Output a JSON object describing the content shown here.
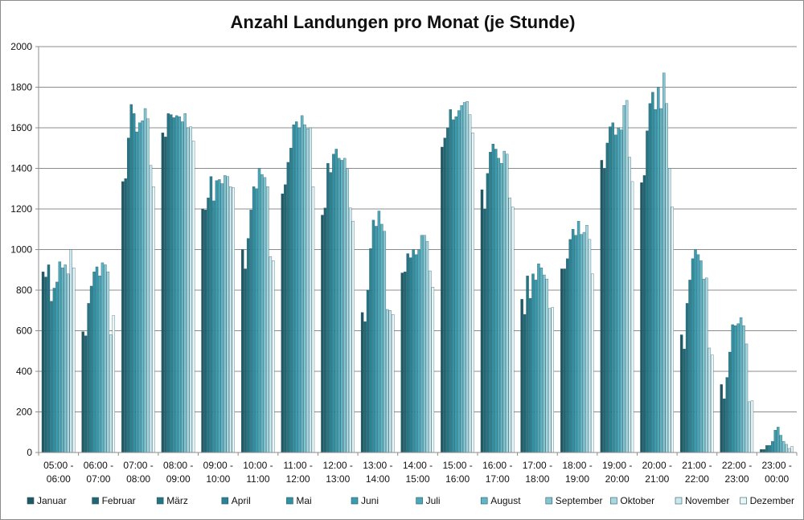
{
  "chart_data": {
    "type": "bar",
    "title": "Anzahl Landungen pro Monat (je Stunde)",
    "xlabel": "",
    "ylabel": "",
    "ylim": [
      0,
      2000
    ],
    "yticks": [
      0,
      200,
      400,
      600,
      800,
      1000,
      1200,
      1400,
      1600,
      1800,
      2000
    ],
    "grid": true,
    "legend_position": "bottom",
    "categories": [
      [
        "05:00 -",
        "06:00"
      ],
      [
        "06:00 -",
        "07:00"
      ],
      [
        "07:00 -",
        "08:00"
      ],
      [
        "08:00 -",
        "09:00"
      ],
      [
        "09:00 -",
        "10:00"
      ],
      [
        "10:00 -",
        "11:00"
      ],
      [
        "11:00 -",
        "12:00"
      ],
      [
        "12:00 -",
        "13:00"
      ],
      [
        "13:00 -",
        "14:00"
      ],
      [
        "14:00 -",
        "15:00"
      ],
      [
        "15:00 -",
        "16:00"
      ],
      [
        "16:00 -",
        "17:00"
      ],
      [
        "17:00 -",
        "18:00"
      ],
      [
        "18:00 -",
        "19:00"
      ],
      [
        "19:00 -",
        "20:00"
      ],
      [
        "20:00 -",
        "21:00"
      ],
      [
        "21:00 -",
        "22:00"
      ],
      [
        "22:00 -",
        "23:00"
      ],
      [
        "23:00 -",
        "00:00"
      ]
    ],
    "series": [
      {
        "name": "Januar",
        "color": "#1F5864",
        "values": [
          890,
          595,
          1335,
          1575,
          1200,
          1000,
          1275,
          1170,
          690,
          885,
          1505,
          1295,
          755,
          905,
          1440,
          1330,
          580,
          335,
          15
        ]
      },
      {
        "name": "Februar",
        "color": "#226674",
        "values": [
          865,
          575,
          1350,
          1555,
          1195,
          905,
          1320,
          1205,
          645,
          890,
          1550,
          1200,
          680,
          905,
          1400,
          1365,
          510,
          265,
          15
        ]
      },
      {
        "name": "März",
        "color": "#257483",
        "values": [
          925,
          735,
          1550,
          1670,
          1255,
          1055,
          1430,
          1425,
          800,
          980,
          1600,
          1375,
          870,
          955,
          1525,
          1585,
          735,
          370,
          35
        ]
      },
      {
        "name": "April",
        "color": "#2A8293",
        "values": [
          745,
          820,
          1715,
          1665,
          1360,
          1195,
          1500,
          1380,
          1005,
          960,
          1690,
          1480,
          760,
          1050,
          1605,
          1720,
          850,
          495,
          35
        ]
      },
      {
        "name": "Mai",
        "color": "#3190A2",
        "values": [
          810,
          890,
          1670,
          1650,
          1240,
          1310,
          1615,
          1470,
          1145,
          1000,
          1640,
          1520,
          880,
          1100,
          1625,
          1775,
          955,
          630,
          55
        ]
      },
      {
        "name": "Juni",
        "color": "#3A9CAE",
        "values": [
          840,
          915,
          1580,
          1660,
          1340,
          1300,
          1630,
          1495,
          1115,
          975,
          1655,
          1495,
          850,
          1070,
          1565,
          1690,
          1000,
          625,
          110
        ]
      },
      {
        "name": "Juli",
        "color": "#4AA8BA",
        "values": [
          940,
          870,
          1625,
          1655,
          1345,
          1400,
          1600,
          1450,
          1190,
          1000,
          1685,
          1450,
          930,
          1140,
          1600,
          1800,
          975,
          635,
          125
        ]
      },
      {
        "name": "August",
        "color": "#62B5C5",
        "values": [
          910,
          935,
          1635,
          1630,
          1325,
          1370,
          1660,
          1440,
          1125,
          1070,
          1710,
          1425,
          910,
          1075,
          1590,
          1695,
          945,
          665,
          85
        ]
      },
      {
        "name": "September",
        "color": "#84C5D2",
        "values": [
          925,
          925,
          1695,
          1670,
          1365,
          1355,
          1615,
          1450,
          1090,
          1070,
          1725,
          1485,
          875,
          1085,
          1710,
          1870,
          855,
          625,
          55
        ]
      },
      {
        "name": "Oktober",
        "color": "#A8D7E0",
        "values": [
          880,
          890,
          1645,
          1600,
          1360,
          1310,
          1595,
          1395,
          705,
          1040,
          1730,
          1470,
          855,
          1120,
          1735,
          1720,
          860,
          535,
          40
        ]
      },
      {
        "name": "November",
        "color": "#CBE8EE",
        "values": [
          1000,
          580,
          1415,
          1605,
          1310,
          965,
          1600,
          1205,
          700,
          895,
          1665,
          1255,
          710,
          1050,
          1455,
          1400,
          515,
          250,
          20
        ]
      },
      {
        "name": "Dezember",
        "color": "#E9F6F8",
        "values": [
          910,
          675,
          1310,
          1535,
          1305,
          945,
          1310,
          1140,
          680,
          815,
          1575,
          1210,
          715,
          880,
          1335,
          1210,
          480,
          255,
          30
        ]
      }
    ]
  }
}
